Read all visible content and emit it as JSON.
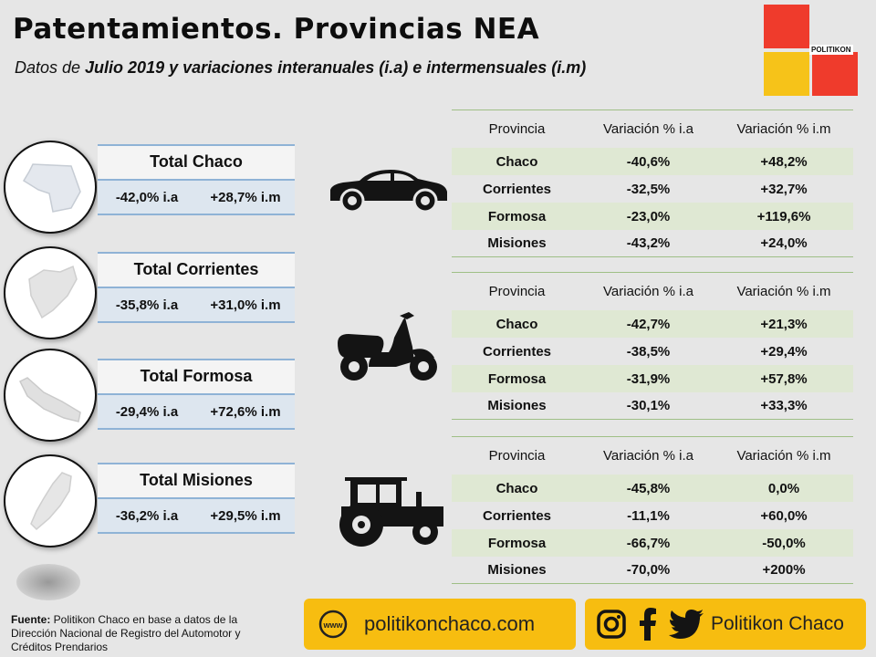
{
  "header": {
    "title": "Patentamientos. Provincias NEA",
    "subtitle_prefix": "Datos de ",
    "subtitle_bold": "Julio 2019",
    "subtitle_suffix": " y variaciones interanuales (i.a) e intermensuales (i.m)"
  },
  "logo": {
    "text": "POLITIKON",
    "colors": [
      "#ef3b2c",
      "#f6c319"
    ]
  },
  "totals": [
    {
      "title": "Total Chaco",
      "ia": "-42,0% i.a",
      "im": "+28,7% i.m"
    },
    {
      "title": "Total Corrientes",
      "ia": "-35,8% i.a",
      "im": "+31,0% i.m"
    },
    {
      "title": "Total Formosa",
      "ia": "-29,4% i.a",
      "im": "+72,6% i.m"
    },
    {
      "title": "Total Misiones",
      "ia": "-36,2% i.a",
      "im": "+29,5% i.m"
    }
  ],
  "tables": [
    {
      "vehicle": "car-icon",
      "headers": [
        "Provincia",
        "Variación % i.a",
        "Variación % i.m"
      ],
      "rows": [
        [
          "Chaco",
          "-40,6%",
          "+48,2%"
        ],
        [
          "Corrientes",
          "-32,5%",
          "+32,7%"
        ],
        [
          "Formosa",
          "-23,0%",
          "+119,6%"
        ],
        [
          "Misiones",
          "-43,2%",
          "+24,0%"
        ]
      ]
    },
    {
      "vehicle": "scooter-icon",
      "headers": [
        "Provincia",
        "Variación % i.a",
        "Variación % i.m"
      ],
      "rows": [
        [
          "Chaco",
          "-42,7%",
          "+21,3%"
        ],
        [
          "Corrientes",
          "-38,5%",
          "+29,4%"
        ],
        [
          "Formosa",
          "-31,9%",
          "+57,8%"
        ],
        [
          "Misiones",
          "-30,1%",
          "+33,3%"
        ]
      ]
    },
    {
      "vehicle": "tractor-icon",
      "headers": [
        "Provincia",
        "Variación % i.a",
        "Variación % i.m"
      ],
      "rows": [
        [
          "Chaco",
          "-45,8%",
          "0,0%"
        ],
        [
          "Corrientes",
          "-11,1%",
          "+60,0%"
        ],
        [
          "Formosa",
          "-66,7%",
          "-50,0%"
        ],
        [
          "Misiones",
          "-70,0%",
          "+200%"
        ]
      ]
    }
  ],
  "footer": {
    "source_label": "Fuente:",
    "source_text": " Politikon Chaco en base a datos de la Dirección Nacional de Registro del Automotor y Créditos Prendarios",
    "website": "politikonchaco.com",
    "www_icon_text": "www",
    "social": "Politikon Chaco"
  },
  "colors": {
    "accent_yellow": "#f7bd10",
    "total_border": "#8fb3d6",
    "table_alt_row": "#dfe8d3"
  }
}
